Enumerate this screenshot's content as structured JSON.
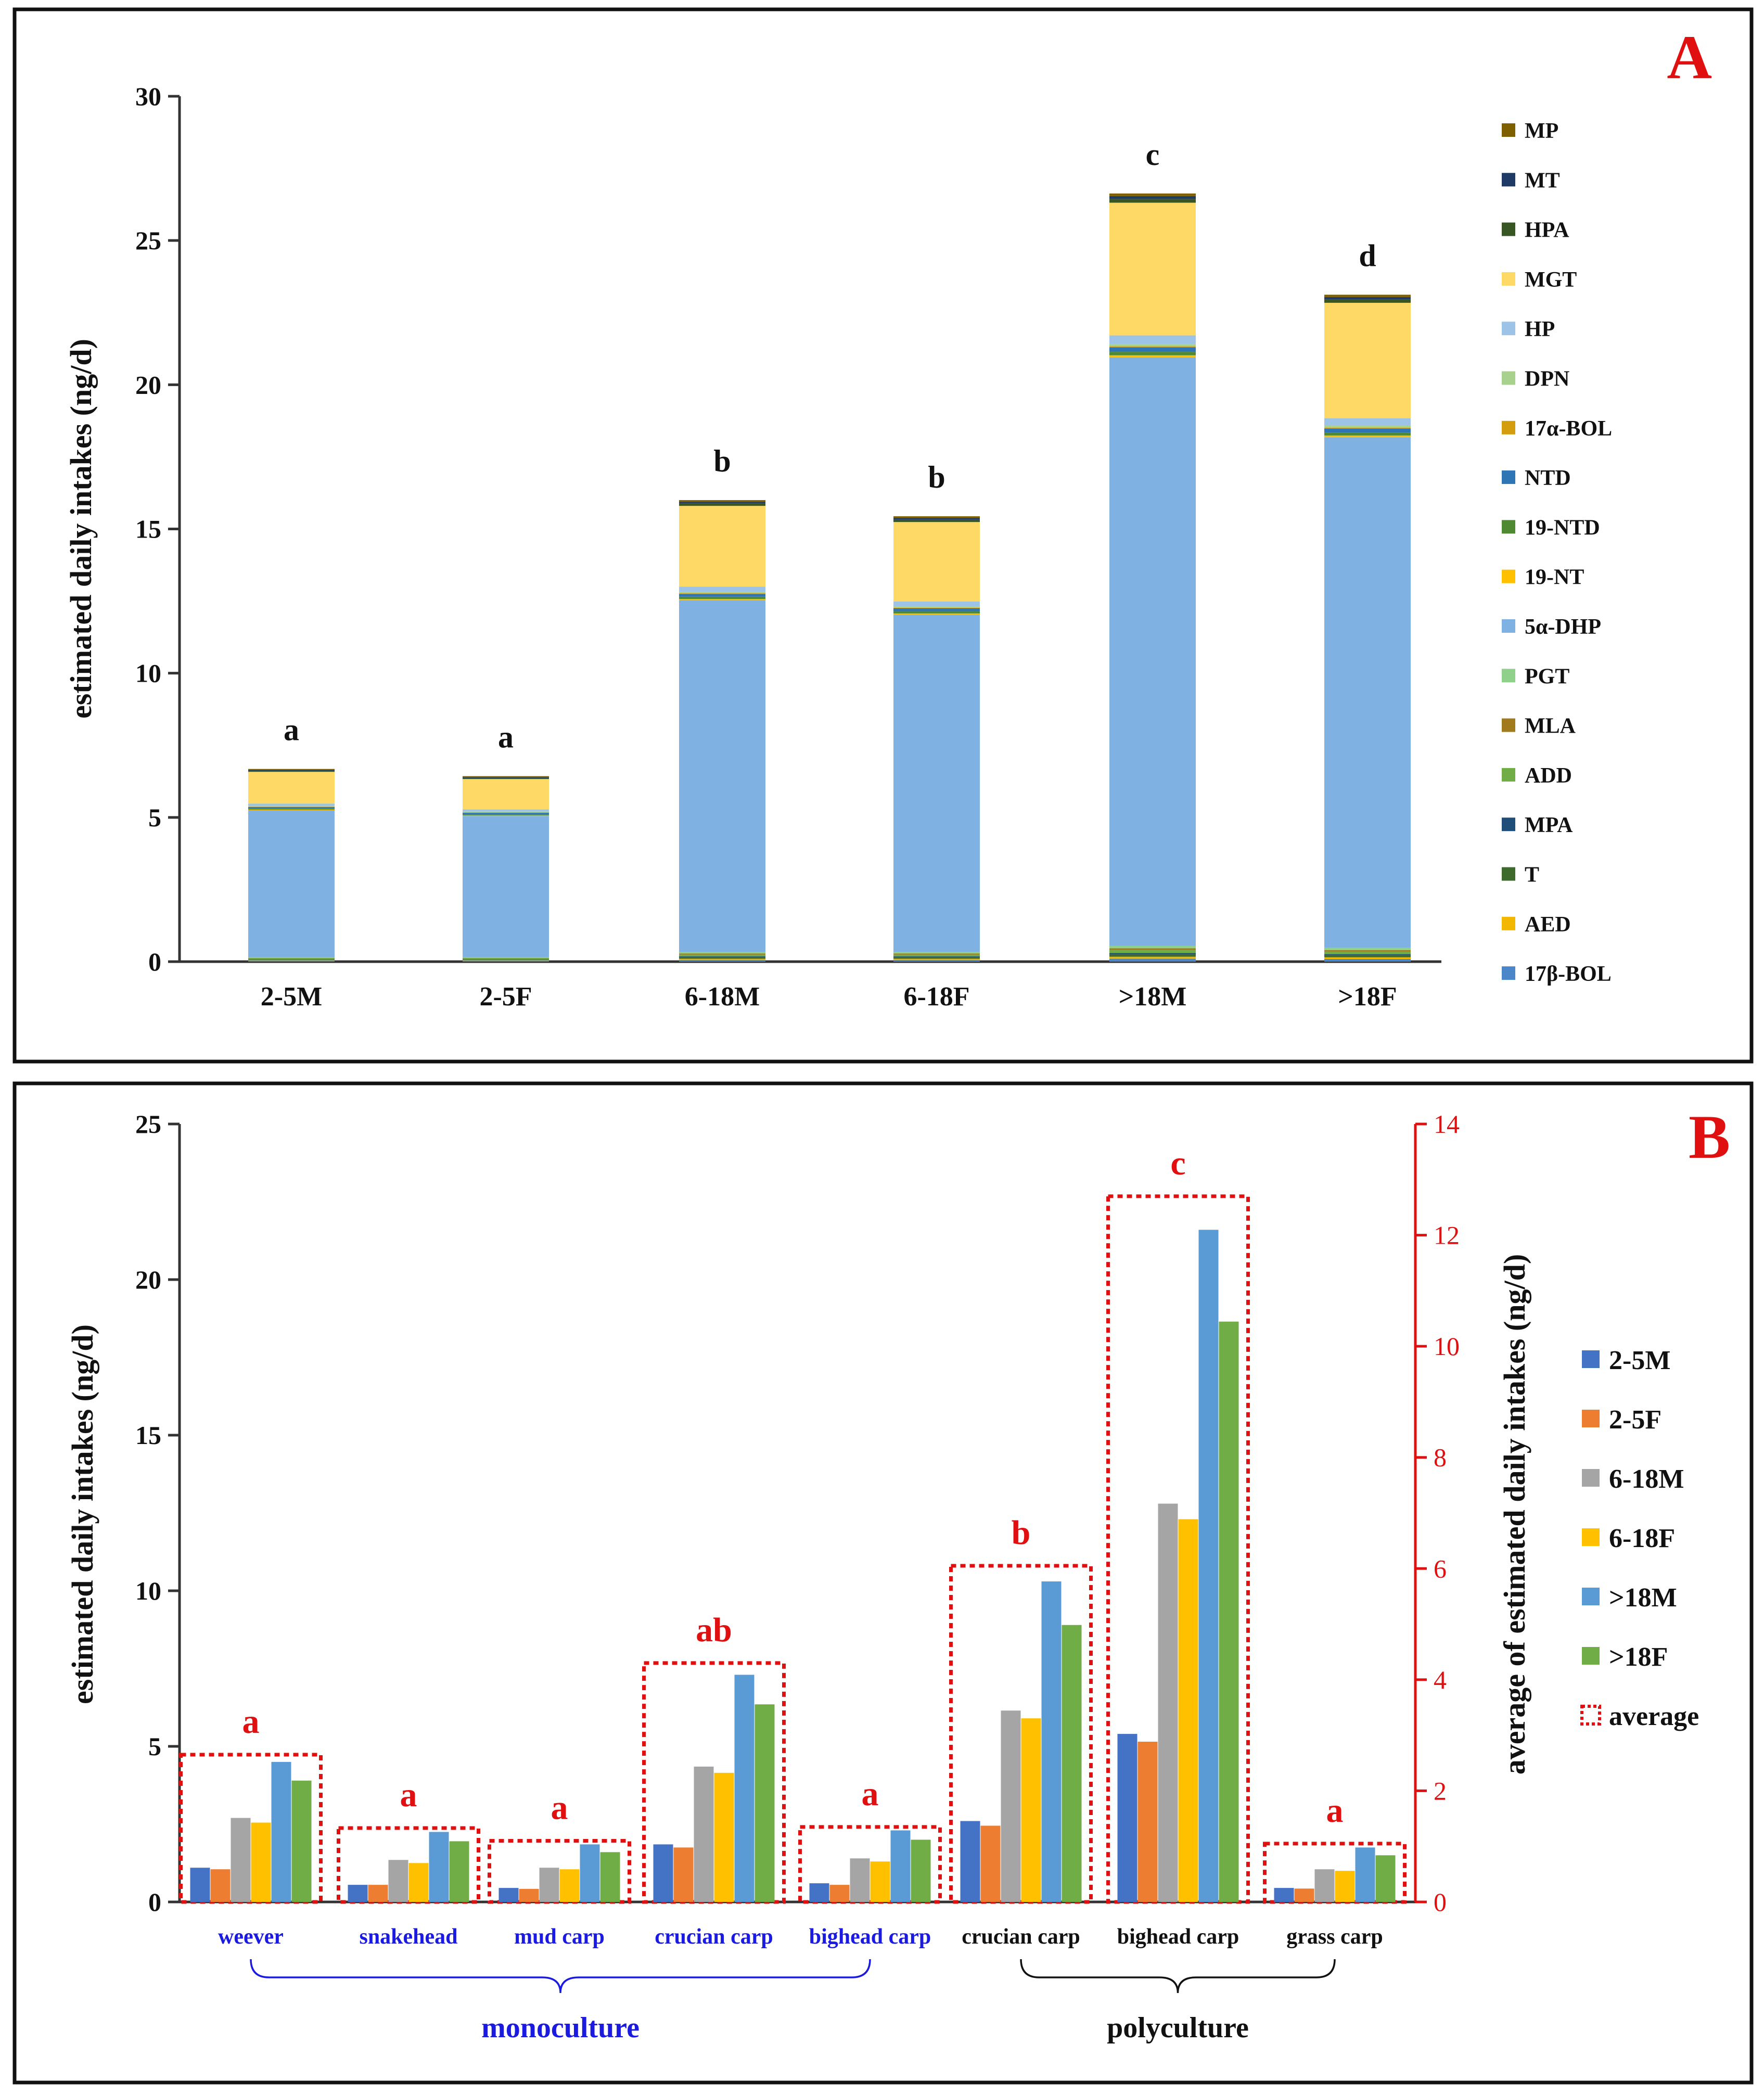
{
  "chart_data": [
    {
      "type": "bar",
      "stacked": true,
      "panel": "A",
      "ylabel": "estimated daily intakes (ng/d)",
      "ylim": [
        0,
        30
      ],
      "yticks": [
        0,
        5,
        10,
        15,
        20,
        25,
        30
      ],
      "categories": [
        "2-5M",
        "2-5F",
        "6-18M",
        "6-18F",
        ">18M",
        ">18F"
      ],
      "significance": [
        "a",
        "a",
        "b",
        "b",
        "c",
        "d"
      ],
      "legend_order": [
        "MP",
        "MT",
        "HPA",
        "MGT",
        "HP",
        "DPN",
        "17α-BOL",
        "NTD",
        "19-NTD",
        "19-NT",
        "5α-DHP",
        "PGT",
        "MLA",
        "ADD",
        "MPA",
        "T",
        "AED",
        "17β-BOL"
      ],
      "series": [
        {
          "name": "17β-BOL",
          "color": "#4a86c8",
          "values": [
            0.03,
            0.03,
            0.06,
            0.06,
            0.1,
            0.09
          ]
        },
        {
          "name": "AED",
          "color": "#f2b800",
          "values": [
            0.02,
            0.02,
            0.04,
            0.04,
            0.07,
            0.06
          ]
        },
        {
          "name": "T",
          "color": "#3e6b2c",
          "values": [
            0.02,
            0.02,
            0.05,
            0.05,
            0.08,
            0.07
          ]
        },
        {
          "name": "MPA",
          "color": "#1f4e79",
          "values": [
            0.01,
            0.01,
            0.03,
            0.03,
            0.05,
            0.04
          ]
        },
        {
          "name": "ADD",
          "color": "#70ad47",
          "values": [
            0.03,
            0.03,
            0.06,
            0.06,
            0.1,
            0.09
          ]
        },
        {
          "name": "MLA",
          "color": "#a07a1c",
          "values": [
            0.02,
            0.02,
            0.04,
            0.04,
            0.06,
            0.05
          ]
        },
        {
          "name": "PGT",
          "color": "#8fd08a",
          "values": [
            0.02,
            0.02,
            0.05,
            0.05,
            0.09,
            0.08
          ]
        },
        {
          "name": "5α-DHP",
          "color": "#7fb1e3",
          "values": [
            5.1,
            4.9,
            12.2,
            11.7,
            20.4,
            17.7
          ]
        },
        {
          "name": "19-NT",
          "color": "#ffc000",
          "values": [
            0.02,
            0.02,
            0.04,
            0.04,
            0.07,
            0.06
          ]
        },
        {
          "name": "19-NTD",
          "color": "#4f8a33",
          "values": [
            0.04,
            0.04,
            0.08,
            0.08,
            0.12,
            0.1
          ]
        },
        {
          "name": "NTD",
          "color": "#2e75b6",
          "values": [
            0.05,
            0.05,
            0.1,
            0.1,
            0.16,
            0.14
          ]
        },
        {
          "name": "17α-BOL",
          "color": "#d49d10",
          "values": [
            0.01,
            0.01,
            0.02,
            0.02,
            0.03,
            0.03
          ]
        },
        {
          "name": "DPN",
          "color": "#a9d18e",
          "values": [
            0.03,
            0.03,
            0.05,
            0.05,
            0.08,
            0.07
          ]
        },
        {
          "name": "HP",
          "color": "#9dc3e6",
          "values": [
            0.08,
            0.08,
            0.18,
            0.17,
            0.3,
            0.26
          ]
        },
        {
          "name": "MGT",
          "color": "#ffd966",
          "values": [
            1.1,
            1.05,
            2.8,
            2.75,
            4.6,
            4.0
          ]
        },
        {
          "name": "HPA",
          "color": "#375623",
          "values": [
            0.04,
            0.04,
            0.08,
            0.08,
            0.13,
            0.11
          ]
        },
        {
          "name": "MT",
          "color": "#1f3a64",
          "values": [
            0.03,
            0.03,
            0.06,
            0.06,
            0.1,
            0.09
          ]
        },
        {
          "name": "MP",
          "color": "#7f6000",
          "values": [
            0.03,
            0.03,
            0.06,
            0.06,
            0.09,
            0.08
          ]
        }
      ]
    },
    {
      "type": "bar",
      "panel": "B",
      "ylabel": "estimated daily intakes (ng/d)",
      "ylabel_right": "average of estimated daily intakes (ng/d)",
      "ylim": [
        0,
        25
      ],
      "yticks": [
        0,
        5,
        10,
        15,
        20,
        25
      ],
      "ylim_right": [
        0,
        14
      ],
      "yticks_right": [
        0,
        2,
        4,
        6,
        8,
        10,
        12,
        14
      ],
      "categories": [
        "weever",
        "snakehead",
        "mud carp",
        "crucian carp",
        "bighead carp",
        "crucian carp",
        "bighead carp",
        "grass carp"
      ],
      "category_groups": [
        {
          "name": "monoculture",
          "start": 0,
          "end": 4
        },
        {
          "name": "polyculture",
          "start": 5,
          "end": 7
        }
      ],
      "significance": [
        "a",
        "a",
        "a",
        "ab",
        "a",
        "b",
        "c",
        "a"
      ],
      "series": [
        {
          "name": "2-5M",
          "color": "#4472c4",
          "values": [
            1.1,
            0.55,
            0.45,
            1.85,
            0.6,
            2.6,
            5.4,
            0.45
          ]
        },
        {
          "name": "2-5F",
          "color": "#ed7d31",
          "values": [
            1.05,
            0.55,
            0.42,
            1.75,
            0.55,
            2.45,
            5.15,
            0.43
          ]
        },
        {
          "name": "6-18M",
          "color": "#a5a5a5",
          "values": [
            2.7,
            1.35,
            1.1,
            4.35,
            1.4,
            6.15,
            12.8,
            1.05
          ]
        },
        {
          "name": "6-18F",
          "color": "#ffc000",
          "values": [
            2.55,
            1.25,
            1.05,
            4.15,
            1.3,
            5.9,
            12.3,
            1.0
          ]
        },
        {
          "name": ">18M",
          "color": "#5b9bd5",
          "values": [
            4.5,
            2.25,
            1.85,
            7.3,
            2.3,
            10.3,
            21.6,
            1.75
          ]
        },
        {
          "name": ">18F",
          "color": "#70ad47",
          "values": [
            3.9,
            1.95,
            1.6,
            6.35,
            2.0,
            8.9,
            18.65,
            1.5
          ]
        }
      ],
      "average": {
        "name": "average",
        "color": "#e01010",
        "values": [
          2.65,
          1.33,
          1.1,
          4.3,
          1.35,
          6.05,
          12.7,
          1.05
        ]
      }
    }
  ]
}
